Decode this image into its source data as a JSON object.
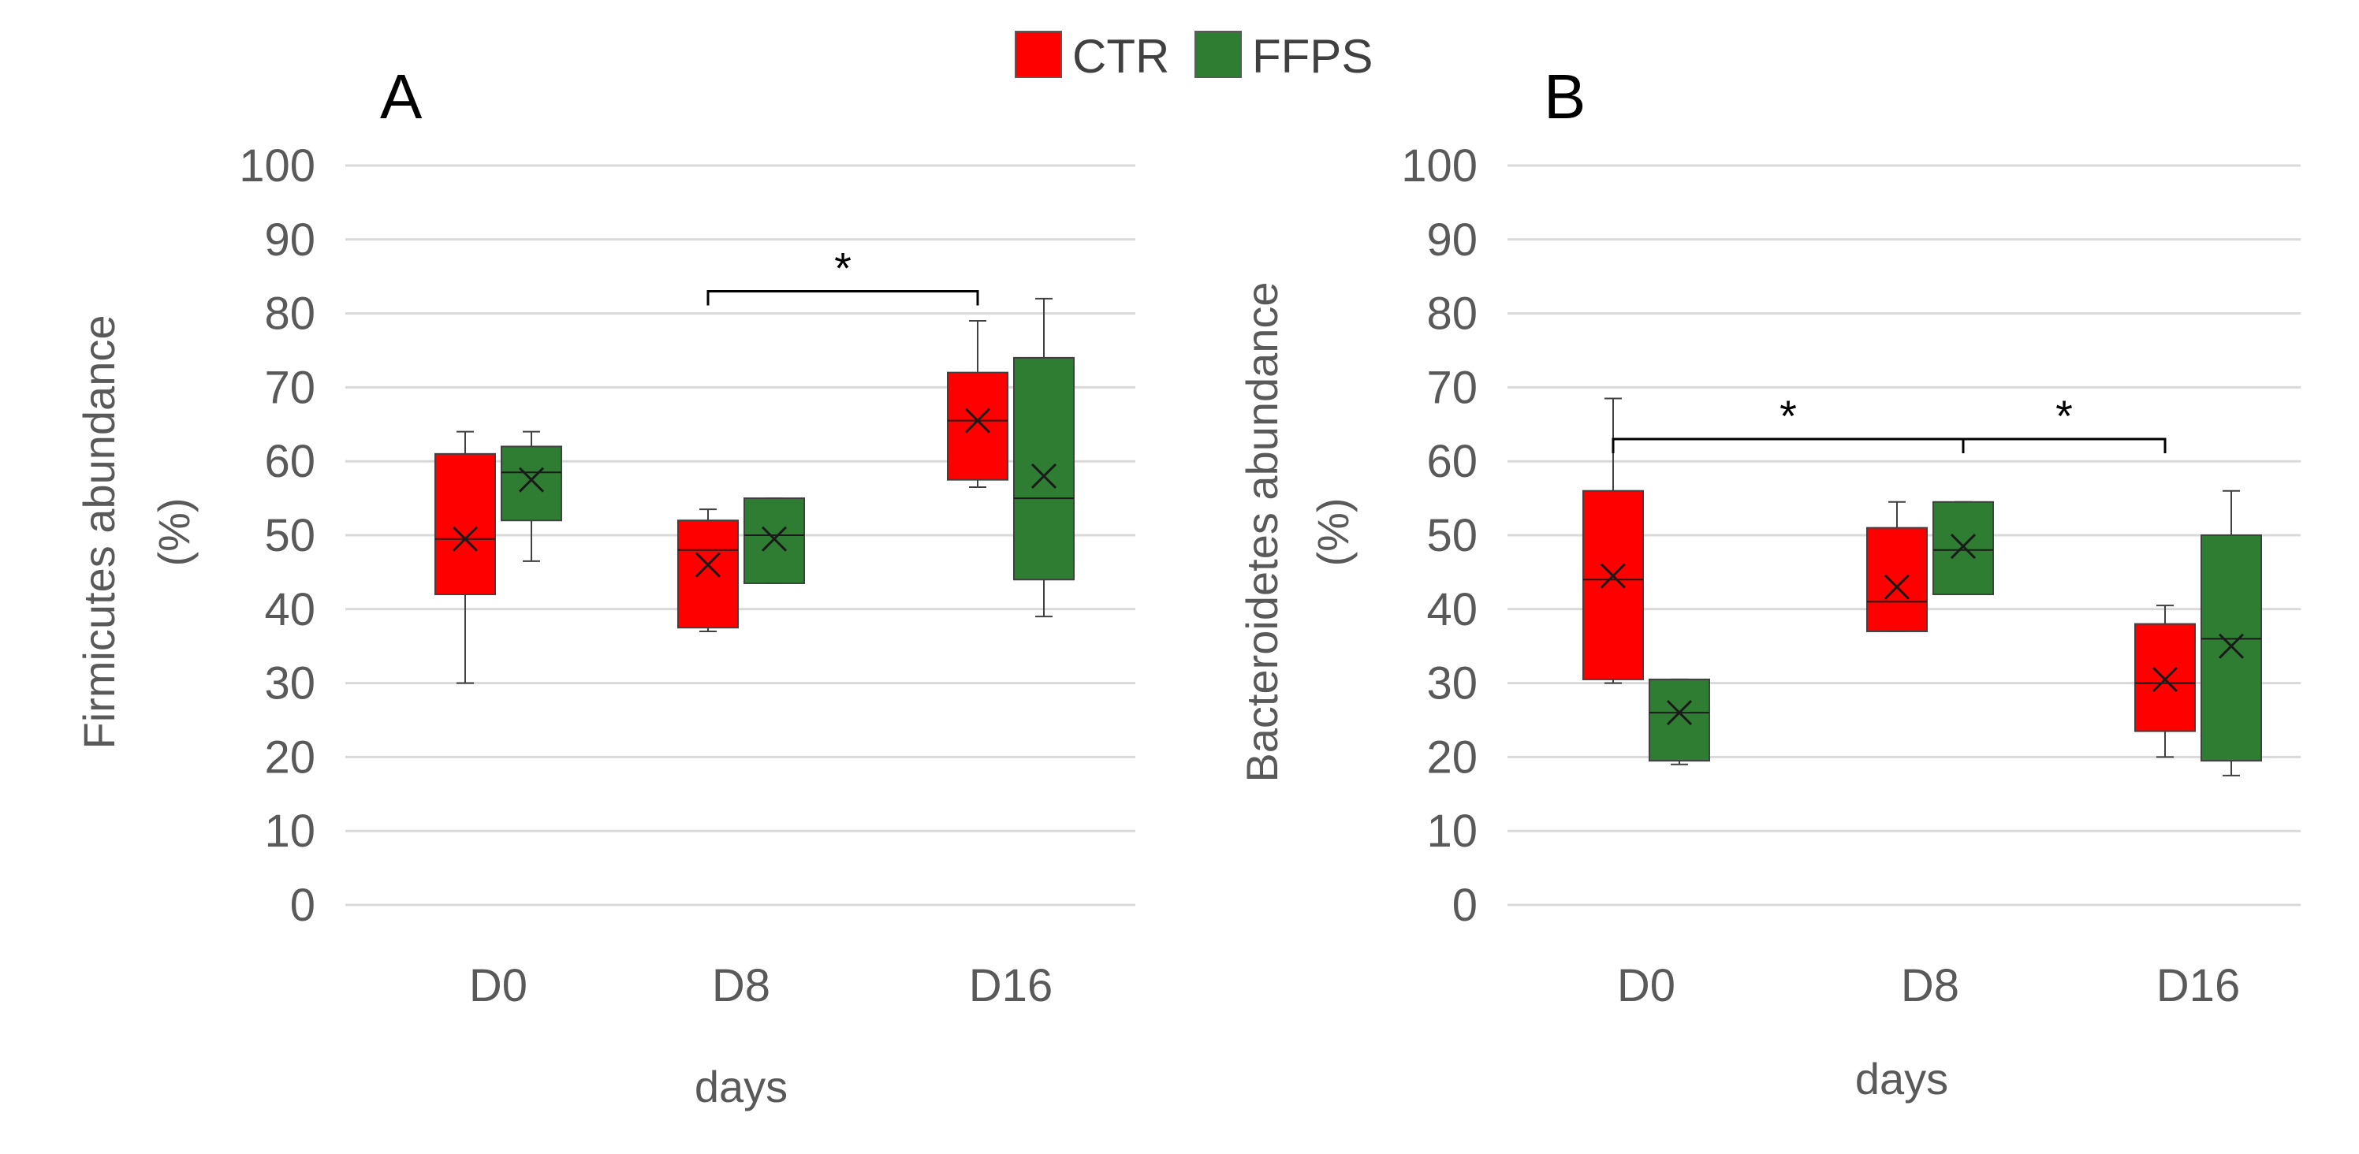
{
  "legend": [
    {
      "name": "CTR",
      "color": "#ff0000"
    },
    {
      "name": "FFPS",
      "color": "#2e7d32"
    }
  ],
  "chart_data": [
    {
      "type": "box",
      "panel": "A",
      "ylabel_line1": "Firmicutes abundance",
      "ylabel_line2": "(%)",
      "xlabel": "days",
      "ylim": [
        0,
        100
      ],
      "yticks": [
        0,
        10,
        20,
        30,
        40,
        50,
        60,
        70,
        80,
        90,
        100
      ],
      "categories": [
        "D0",
        "D8",
        "D16"
      ],
      "series": [
        {
          "name": "CTR",
          "color": "#ff0000",
          "boxes": [
            {
              "min": 30,
              "q1": 42,
              "median": 49.5,
              "q3": 61,
              "max": 64,
              "mean": 49.5
            },
            {
              "min": 37,
              "q1": 37.5,
              "median": 48,
              "q3": 52,
              "max": 53.5,
              "mean": 46
            },
            {
              "min": 56.5,
              "q1": 57.5,
              "median": 65.5,
              "q3": 72,
              "max": 79,
              "mean": 65.5
            }
          ]
        },
        {
          "name": "FFPS",
          "color": "#2e7d32",
          "boxes": [
            {
              "min": 46.5,
              "q1": 52,
              "median": 58.5,
              "q3": 62,
              "max": 64,
              "mean": 57.5
            },
            {
              "min": 43.5,
              "q1": 43.5,
              "median": 50,
              "q3": 55,
              "max": 55,
              "mean": 49.5
            },
            {
              "min": 39,
              "q1": 44,
              "median": 55,
              "q3": 74,
              "max": 82,
              "mean": 58
            }
          ]
        }
      ],
      "significance": [
        {
          "from_category": 1,
          "from_series": 0,
          "to_category": 2,
          "to_series": 0,
          "y": 83,
          "label": "*"
        }
      ]
    },
    {
      "type": "box",
      "panel": "B",
      "ylabel_line1": "Bacteroidetes abundance",
      "ylabel_line2": "(%)",
      "xlabel": "days",
      "ylim": [
        0,
        100
      ],
      "yticks": [
        0,
        10,
        20,
        30,
        40,
        50,
        60,
        70,
        80,
        90,
        100
      ],
      "categories": [
        "D0",
        "D8",
        "D16"
      ],
      "series": [
        {
          "name": "CTR",
          "color": "#ff0000",
          "boxes": [
            {
              "min": 30,
              "q1": 30.5,
              "median": 44,
              "q3": 56,
              "max": 68.5,
              "mean": 44.5
            },
            {
              "min": 37,
              "q1": 37,
              "median": 41,
              "q3": 51,
              "max": 54.5,
              "mean": 43
            },
            {
              "min": 20,
              "q1": 23.5,
              "median": 30,
              "q3": 38,
              "max": 40.5,
              "mean": 30.5
            }
          ]
        },
        {
          "name": "FFPS",
          "color": "#2e7d32",
          "boxes": [
            {
              "min": 19,
              "q1": 19.5,
              "median": 26,
              "q3": 30.5,
              "max": 30.5,
              "mean": 26
            },
            {
              "min": 42,
              "q1": 42,
              "median": 48,
              "q3": 54.5,
              "max": 54.5,
              "mean": 48.5
            },
            {
              "min": 17.5,
              "q1": 19.5,
              "median": 36,
              "q3": 50,
              "max": 56,
              "mean": 35
            }
          ]
        }
      ],
      "significance": [
        {
          "from_category": 0,
          "from_series": 0,
          "to_category": 1,
          "to_series": 1,
          "y": 63,
          "label": "*"
        },
        {
          "from_category": 1,
          "from_series": 1,
          "to_category": 2,
          "to_series": 0,
          "y": 63,
          "label": "*"
        }
      ]
    }
  ]
}
